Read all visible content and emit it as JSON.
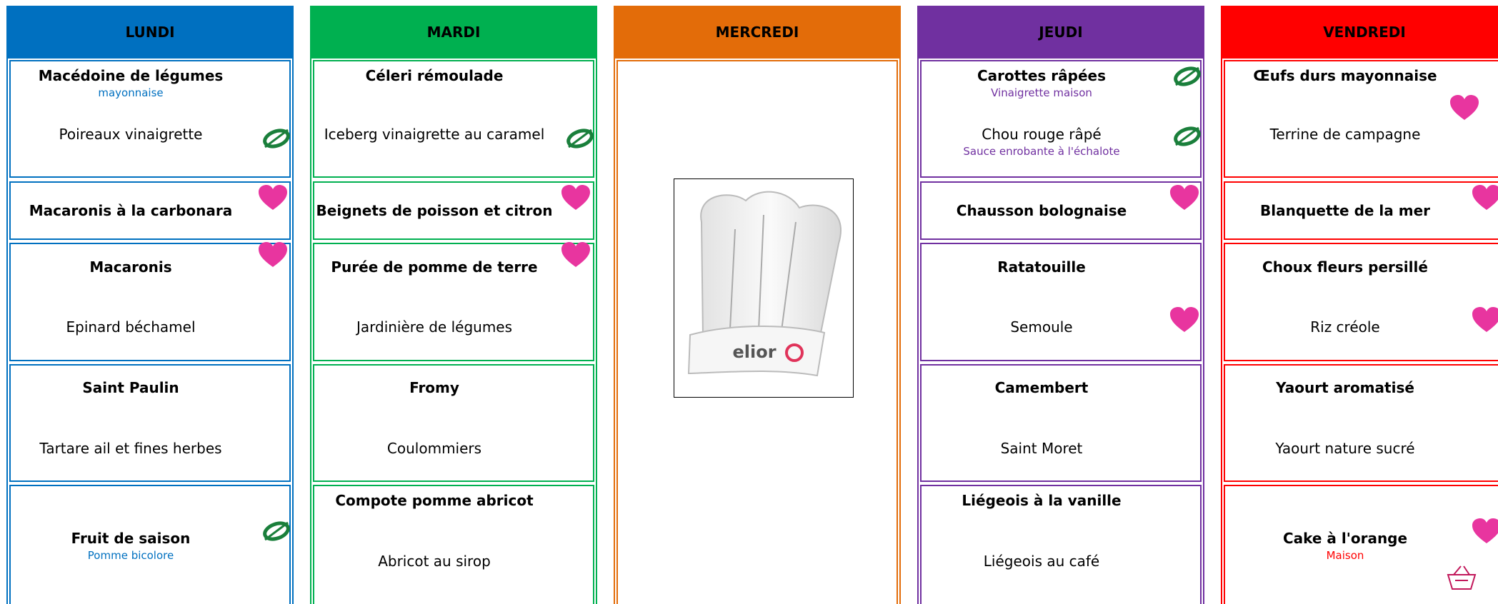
{
  "days": [
    {
      "name": "LUNDI",
      "color": "#0070c0",
      "rows": [
        [
          {
            "dish": "Macédoine de légumes",
            "note": "mayonnaise"
          },
          {
            "dish": "Poireaux vinaigrette"
          }
        ],
        [
          {
            "dish": "Macaronis à la carbonara"
          }
        ],
        [
          {
            "dish": "Macaronis"
          },
          {
            "dish": "Epinard béchamel"
          }
        ],
        [
          {
            "dish": "Saint Paulin"
          },
          {
            "dish": "Tartare ail et fines herbes"
          }
        ],
        [
          {
            "dish": "Fruit de saison",
            "note": "Pomme bicolore"
          }
        ]
      ]
    },
    {
      "name": "MARDI",
      "color": "#00b050",
      "rows": [
        [
          {
            "dish": "Céleri rémoulade"
          },
          {
            "dish": "Iceberg vinaigrette au caramel"
          }
        ],
        [
          {
            "dish": "Beignets de poisson et citron"
          }
        ],
        [
          {
            "dish": "Purée de pomme de terre"
          },
          {
            "dish": "Jardinière de légumes"
          }
        ],
        [
          {
            "dish": "Fromy"
          },
          {
            "dish": "Coulommiers"
          }
        ],
        [
          {
            "dish": "Compote pomme abricot"
          },
          {
            "dish": "Abricot au sirop"
          }
        ]
      ]
    },
    {
      "name": "MERCREDI",
      "color": "#e36c09",
      "logo": "elior",
      "rows": []
    },
    {
      "name": "JEUDI",
      "color": "#7030a0",
      "rows": [
        [
          {
            "dish": "Carottes râpées",
            "note": "Vinaigrette maison"
          },
          {
            "dish": "Chou rouge râpé",
            "note": "Sauce enrobante à l'échalote"
          }
        ],
        [
          {
            "dish": "Chausson bolognaise"
          }
        ],
        [
          {
            "dish": "Ratatouille"
          },
          {
            "dish": "Semoule"
          }
        ],
        [
          {
            "dish": "Camembert"
          },
          {
            "dish": "Saint Moret"
          }
        ],
        [
          {
            "dish": "Liégeois à la vanille"
          },
          {
            "dish": "Liégeois au café"
          }
        ]
      ]
    },
    {
      "name": "VENDREDI",
      "color": "#ff0000",
      "rows": [
        [
          {
            "dish": "Œufs durs mayonnaise"
          },
          {
            "dish": "Terrine de campagne"
          }
        ],
        [
          {
            "dish": "Blanquette de la mer"
          }
        ],
        [
          {
            "dish": "Choux fleurs persillé"
          },
          {
            "dish": "Riz créole"
          }
        ],
        [
          {
            "dish": "Yaourt aromatisé"
          },
          {
            "dish": "Yaourt nature sucré"
          }
        ],
        [
          {
            "dish": "Cake à l'orange",
            "note": "Maison"
          }
        ]
      ]
    }
  ]
}
